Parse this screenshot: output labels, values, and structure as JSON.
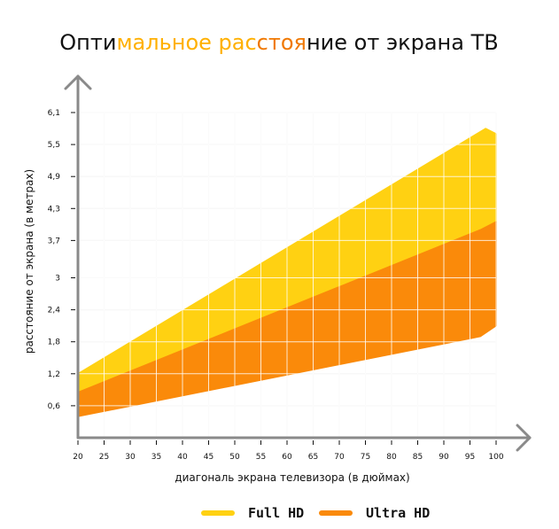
{
  "title": {
    "segments": [
      {
        "text": "Опти",
        "color": "#111111"
      },
      {
        "text": "мальное",
        "color": "#FFB000"
      },
      {
        "text": " ",
        "color": "#111111"
      },
      {
        "text": "рас",
        "color": "#FFB000"
      },
      {
        "text": "стоя",
        "color": "#F07800"
      },
      {
        "text": "ние от экрана ТВ",
        "color": "#111111"
      }
    ]
  },
  "colors": {
    "full_hd": "#FFD112",
    "ultra_hd": "#FA8A0A",
    "axis": "#8a8a8a",
    "grid": "#e6e6e6"
  },
  "chart_data": {
    "type": "area",
    "xlabel": "диагональ экрана телевизора (в дюймах)",
    "ylabel": "расстояние от экрана (в метрах)",
    "x_ticks": [
      "20",
      "25",
      "30",
      "35",
      "40",
      "45",
      "50",
      "55",
      "60",
      "65",
      "70",
      "75",
      "80",
      "85",
      "90",
      "95",
      "100"
    ],
    "y_ticks": [
      "0,6",
      "1,2",
      "1,8",
      "2,4",
      "3",
      "3,7",
      "4,3",
      "4,9",
      "5,5",
      "6,1"
    ],
    "xlim": [
      20,
      100
    ],
    "ylim": [
      0,
      6.1
    ],
    "grid": true,
    "series": [
      {
        "name": "Full HD",
        "x": [
          20,
          98,
          100
        ],
        "upper": [
          1.2,
          5.8,
          5.7
        ],
        "lower": [
          0.85,
          3.9,
          4.05
        ]
      },
      {
        "name": "Ultra HD",
        "x": [
          20,
          97,
          100
        ],
        "upper": [
          0.85,
          3.9,
          4.05
        ],
        "lower": [
          0.4,
          1.9,
          2.1
        ]
      }
    ],
    "legend": {
      "position": "bottom-center",
      "entries": [
        {
          "label": "Full HD",
          "color": "#FFD112"
        },
        {
          "label": "Ultra HD",
          "color": "#FA8A0A"
        }
      ]
    }
  }
}
